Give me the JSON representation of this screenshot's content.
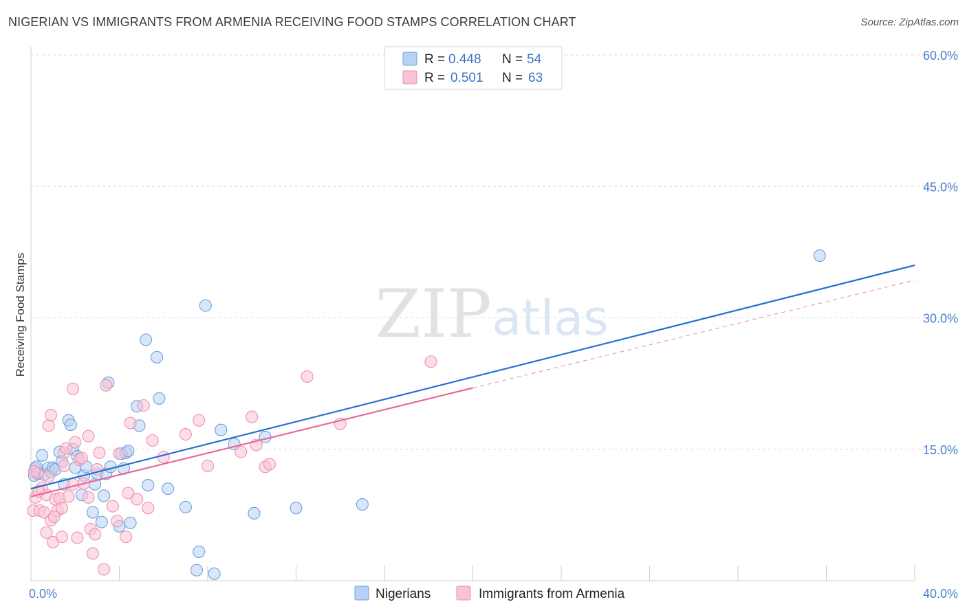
{
  "title": "NIGERIAN VS IMMIGRANTS FROM ARMENIA RECEIVING FOOD STAMPS CORRELATION CHART",
  "source": "Source: ZipAtlas.com",
  "watermark": {
    "zip": "ZIP",
    "atlas": "atlas"
  },
  "legend": {
    "r_label": "R =",
    "n_label": "N =",
    "rows": [
      {
        "r": "0.448",
        "n": "54"
      },
      {
        "r": "0.501",
        "n": "63"
      }
    ]
  },
  "chart_data": {
    "type": "scatter",
    "title": "NIGERIAN VS IMMIGRANTS FROM ARMENIA RECEIVING FOOD STAMPS CORRELATION CHART",
    "xlabel": "",
    "ylabel": "Receiving Food Stamps",
    "xlim": [
      0,
      40
    ],
    "ylim": [
      0,
      60
    ],
    "x_tick_labels": [
      {
        "value": 0,
        "label": "0.0%"
      },
      {
        "value": 40,
        "label": "40.0%"
      }
    ],
    "y_tick_labels": [
      {
        "value": 15,
        "label": "15.0%"
      },
      {
        "value": 30,
        "label": "30.0%"
      },
      {
        "value": 45,
        "label": "45.0%"
      },
      {
        "value": 60,
        "label": "60.0%"
      }
    ],
    "series": [
      {
        "name": "Nigerians",
        "color": "#6b9fe0",
        "line_color": "#2a6fd0",
        "fill": "#b9d1f3",
        "r": 0.448,
        "n": 54,
        "trend": {
          "x0": 0,
          "y0": 10.5,
          "x1": 40,
          "y1": 36.0
        },
        "points": [
          [
            0.2,
            12.8
          ],
          [
            0.3,
            12.2
          ],
          [
            0.5,
            14.3
          ],
          [
            0.6,
            12.1
          ],
          [
            0.8,
            12.9
          ],
          [
            0.9,
            12.4
          ],
          [
            1.0,
            12.9
          ],
          [
            1.1,
            12.7
          ],
          [
            1.3,
            14.7
          ],
          [
            1.4,
            13.6
          ],
          [
            1.5,
            11.0
          ],
          [
            1.7,
            18.3
          ],
          [
            1.8,
            17.8
          ],
          [
            1.9,
            15.0
          ],
          [
            2.0,
            12.9
          ],
          [
            2.1,
            14.2
          ],
          [
            2.3,
            9.8
          ],
          [
            2.4,
            12.0
          ],
          [
            2.5,
            13.0
          ],
          [
            2.8,
            7.8
          ],
          [
            2.9,
            11.0
          ],
          [
            3.0,
            12.2
          ],
          [
            3.2,
            6.7
          ],
          [
            3.3,
            9.7
          ],
          [
            3.4,
            12.2
          ],
          [
            3.5,
            22.6
          ],
          [
            3.6,
            13.0
          ],
          [
            4.0,
            6.2
          ],
          [
            4.1,
            14.5
          ],
          [
            4.2,
            12.8
          ],
          [
            4.3,
            14.6
          ],
          [
            4.4,
            14.8
          ],
          [
            4.5,
            6.6
          ],
          [
            4.8,
            19.9
          ],
          [
            4.9,
            17.7
          ],
          [
            5.2,
            27.5
          ],
          [
            5.3,
            10.9
          ],
          [
            5.7,
            25.5
          ],
          [
            5.8,
            20.8
          ],
          [
            6.2,
            10.5
          ],
          [
            7.0,
            8.4
          ],
          [
            7.5,
            1.2
          ],
          [
            7.6,
            3.3
          ],
          [
            7.9,
            31.4
          ],
          [
            8.3,
            0.8
          ],
          [
            8.6,
            17.2
          ],
          [
            9.2,
            15.6
          ],
          [
            10.1,
            7.7
          ],
          [
            10.6,
            16.4
          ],
          [
            12.0,
            8.3
          ],
          [
            15.0,
            8.7
          ],
          [
            35.7,
            37.1
          ],
          [
            0.15,
            12.0
          ],
          [
            0.25,
            13.0
          ]
        ]
      },
      {
        "name": "Immigrants from Armenia",
        "color": "#f08fae",
        "line_color": "#e8689a",
        "fill": "#f8c3d4",
        "r": 0.501,
        "n": 63,
        "trend": {
          "x0": 0,
          "y0": 9.6,
          "x1": 20,
          "y1": 22.0
        },
        "trend_dashed": {
          "x0": 20,
          "y0": 22.0,
          "x1": 40,
          "y1": 34.3
        },
        "points": [
          [
            0.1,
            8.0
          ],
          [
            0.2,
            9.5
          ],
          [
            0.3,
            12.3
          ],
          [
            0.4,
            8.0
          ],
          [
            0.5,
            10.6
          ],
          [
            0.6,
            7.8
          ],
          [
            0.7,
            5.5
          ],
          [
            0.7,
            9.8
          ],
          [
            0.8,
            17.7
          ],
          [
            0.8,
            11.9
          ],
          [
            0.9,
            6.9
          ],
          [
            0.9,
            18.9
          ],
          [
            1.0,
            4.4
          ],
          [
            1.1,
            9.3
          ],
          [
            1.2,
            8.0
          ],
          [
            1.3,
            9.4
          ],
          [
            1.4,
            5.0
          ],
          [
            1.4,
            8.3
          ],
          [
            1.5,
            13.1
          ],
          [
            1.5,
            14.6
          ],
          [
            1.6,
            15.1
          ],
          [
            1.7,
            9.6
          ],
          [
            1.9,
            21.9
          ],
          [
            1.9,
            11.0
          ],
          [
            2.0,
            15.8
          ],
          [
            2.1,
            4.9
          ],
          [
            2.2,
            13.8
          ],
          [
            2.3,
            14.0
          ],
          [
            2.4,
            11.1
          ],
          [
            2.6,
            16.5
          ],
          [
            2.6,
            9.5
          ],
          [
            2.7,
            5.9
          ],
          [
            2.8,
            3.1
          ],
          [
            2.9,
            5.3
          ],
          [
            3.0,
            12.7
          ],
          [
            3.1,
            14.6
          ],
          [
            3.3,
            1.3
          ],
          [
            3.4,
            22.3
          ],
          [
            3.7,
            8.5
          ],
          [
            3.9,
            6.8
          ],
          [
            4.0,
            14.5
          ],
          [
            4.3,
            5.0
          ],
          [
            4.4,
            10.0
          ],
          [
            4.5,
            18.0
          ],
          [
            4.8,
            9.3
          ],
          [
            5.1,
            20.0
          ],
          [
            5.3,
            8.3
          ],
          [
            5.5,
            16.0
          ],
          [
            6.0,
            14.1
          ],
          [
            7.0,
            16.7
          ],
          [
            7.6,
            18.3
          ],
          [
            8.0,
            13.1
          ],
          [
            9.5,
            14.7
          ],
          [
            10.0,
            18.7
          ],
          [
            10.2,
            15.5
          ],
          [
            10.6,
            13.0
          ],
          [
            10.8,
            13.3
          ],
          [
            12.5,
            23.3
          ],
          [
            14.0,
            17.9
          ],
          [
            18.1,
            25.0
          ],
          [
            0.15,
            12.5
          ],
          [
            0.35,
            10.2
          ],
          [
            1.05,
            7.3
          ]
        ]
      }
    ],
    "legend_position": "top-center",
    "bottom_legend": [
      "Nigerians",
      "Immigrants from Armenia"
    ],
    "grid": true
  }
}
